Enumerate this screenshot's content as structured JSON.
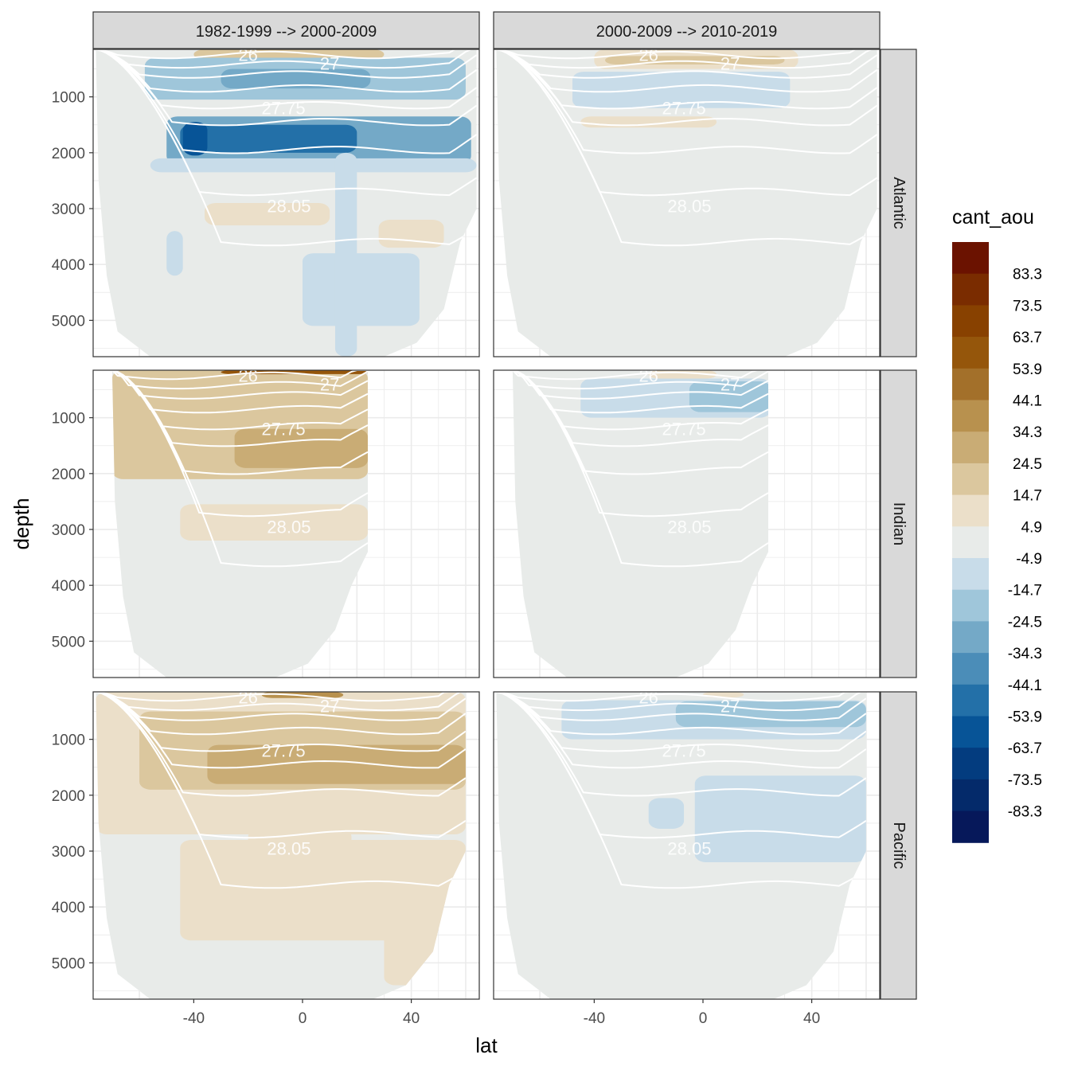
{
  "chart_data": {
    "type": "heatmap",
    "description_kind": "faceted filled-contour ocean sections",
    "xlabel": "lat",
    "ylabel": "depth",
    "legend_title": "cant_aou",
    "legend_placement": "right",
    "xlim": [
      -77,
      65
    ],
    "ylim": [
      5650,
      150
    ],
    "y_reversed": true,
    "x_ticks": [
      -40,
      0,
      40
    ],
    "y_ticks": [
      1000,
      2000,
      3000,
      4000,
      5000
    ],
    "grid": true,
    "column_strips": [
      "1982-1999 --> 2000-2009",
      "2000-2009 --> 2010-2019"
    ],
    "row_strips": [
      "Atlantic",
      "Indian",
      "Pacific"
    ],
    "legend_bins": [
      {
        "label": "83.3",
        "color": "#6b1200"
      },
      {
        "label": "73.5",
        "color": "#7a2c00"
      },
      {
        "label": "63.7",
        "color": "#884100"
      },
      {
        "label": "53.9",
        "color": "#95560b"
      },
      {
        "label": "44.1",
        "color": "#a3702a"
      },
      {
        "label": "34.3",
        "color": "#b8914e"
      },
      {
        "label": "24.5",
        "color": "#c9ac75"
      },
      {
        "label": "14.7",
        "color": "#dbc79e"
      },
      {
        "label": "4.9",
        "color": "#ebdfc9"
      },
      {
        "label": "-4.9",
        "color": "#e8ebe9"
      },
      {
        "label": "-14.7",
        "color": "#c8dce9"
      },
      {
        "label": "-24.5",
        "color": "#9fc6da"
      },
      {
        "label": "-34.3",
        "color": "#74a9c7"
      },
      {
        "label": "-44.1",
        "color": "#4b8db8"
      },
      {
        "label": "-53.9",
        "color": "#2370a8"
      },
      {
        "label": "-63.7",
        "color": "#075497"
      },
      {
        "label": "-73.5",
        "color": "#033c7f"
      },
      {
        "label": "-83.3",
        "color": "#042a6a"
      },
      {
        "label": "",
        "color": "#06185a"
      }
    ],
    "isopycnal_labels": [
      "26",
      "27",
      "27.75",
      "28.05"
    ],
    "panels": [
      {
        "basin": "Atlantic",
        "period": "1982-1999 --> 2000-2009",
        "lat_range": [
          -76,
          64
        ],
        "bands": [
          {
            "color": "#dbc79e",
            "lat": [
              -40,
              30
            ],
            "depth": [
              150,
              330
            ]
          },
          {
            "color": "#9fc6da",
            "lat": [
              -58,
              60
            ],
            "depth": [
              300,
              1050
            ]
          },
          {
            "color": "#74a9c7",
            "lat": [
              -30,
              25
            ],
            "depth": [
              500,
              850
            ]
          },
          {
            "color": "#74a9c7",
            "lat": [
              -50,
              62
            ],
            "depth": [
              1350,
              2200
            ]
          },
          {
            "color": "#2370a8",
            "lat": [
              -45,
              20
            ],
            "depth": [
              1500,
              2000
            ]
          },
          {
            "color": "#075497",
            "lat": [
              -44,
              -35
            ],
            "depth": [
              1450,
              2050
            ]
          },
          {
            "color": "#c8dce9",
            "lat": [
              -56,
              64
            ],
            "depth": [
              2100,
              2350
            ]
          },
          {
            "color": "#ebdfc9",
            "lat": [
              -36,
              10
            ],
            "depth": [
              2900,
              3300
            ]
          },
          {
            "color": "#ebdfc9",
            "lat": [
              28,
              52
            ],
            "depth": [
              3200,
              3700
            ]
          },
          {
            "color": "#c8dce9",
            "lat": [
              0,
              43
            ],
            "depth": [
              3800,
              5100
            ]
          },
          {
            "color": "#c8dce9",
            "lat": [
              12,
              20
            ],
            "depth": [
              2000,
              5650
            ]
          },
          {
            "color": "#c8dce9",
            "lat": [
              -50,
              -44
            ],
            "depth": [
              3400,
              4200
            ]
          }
        ]
      },
      {
        "basin": "Atlantic",
        "period": "2000-2009 --> 2010-2019",
        "lat_range": [
          -76,
          64
        ],
        "bands": [
          {
            "color": "#ebdfc9",
            "lat": [
              -40,
              35
            ],
            "depth": [
              150,
              500
            ]
          },
          {
            "color": "#dbc79e",
            "lat": [
              -36,
              30
            ],
            "depth": [
              270,
              420
            ]
          },
          {
            "color": "#c8dce9",
            "lat": [
              -48,
              32
            ],
            "depth": [
              550,
              1200
            ]
          },
          {
            "color": "#ebdfc9",
            "lat": [
              -45,
              5
            ],
            "depth": [
              1350,
              1550
            ]
          }
        ]
      },
      {
        "basin": "Indian",
        "period": "1982-1999 --> 2000-2009",
        "lat_range": [
          -70,
          24
        ],
        "bands": [
          {
            "color": "#dbc79e",
            "lat": [
              -70,
              24
            ],
            "depth": [
              150,
              2100
            ]
          },
          {
            "color": "#c9ac75",
            "lat": [
              -25,
              24
            ],
            "depth": [
              1200,
              1900
            ]
          },
          {
            "color": "#ebdfc9",
            "lat": [
              -45,
              24
            ],
            "depth": [
              2550,
              3200
            ]
          },
          {
            "color": "#95560b",
            "lat": [
              -30,
              24
            ],
            "depth": [
              150,
              220
            ]
          }
        ]
      },
      {
        "basin": "Indian",
        "period": "2000-2009 --> 2010-2019",
        "lat_range": [
          -70,
          24
        ],
        "bands": [
          {
            "color": "#c8dce9",
            "lat": [
              -45,
              25
            ],
            "depth": [
              300,
              1000
            ]
          },
          {
            "color": "#9fc6da",
            "lat": [
              -5,
              25
            ],
            "depth": [
              350,
              900
            ]
          },
          {
            "color": "#ebdfc9",
            "lat": [
              -20,
              5
            ],
            "depth": [
              150,
              300
            ]
          }
        ]
      },
      {
        "basin": "Pacific",
        "period": "1982-1999 --> 2000-2009",
        "lat_range": [
          -76,
          60
        ],
        "bands": [
          {
            "color": "#ebdfc9",
            "lat": [
              -76,
              60
            ],
            "depth": [
              150,
              2700
            ]
          },
          {
            "color": "#dbc79e",
            "lat": [
              -60,
              60
            ],
            "depth": [
              500,
              1900
            ]
          },
          {
            "color": "#c9ac75",
            "lat": [
              -35,
              60
            ],
            "depth": [
              1100,
              1800
            ]
          },
          {
            "color": "#ebdfc9",
            "lat": [
              -20,
              18
            ],
            "depth": [
              2600,
              3300
            ]
          },
          {
            "color": "#ebdfc9",
            "lat": [
              -45,
              60
            ],
            "depth": [
              2800,
              4600
            ]
          },
          {
            "color": "#ebdfc9",
            "lat": [
              30,
              58
            ],
            "depth": [
              3900,
              5400
            ]
          },
          {
            "color": "#b8914e",
            "lat": [
              -15,
              15
            ],
            "depth": [
              150,
              260
            ]
          }
        ]
      },
      {
        "basin": "Pacific",
        "period": "2000-2009 --> 2010-2019",
        "lat_range": [
          -76,
          60
        ],
        "bands": [
          {
            "color": "#c8dce9",
            "lat": [
              -52,
              60
            ],
            "depth": [
              300,
              1000
            ]
          },
          {
            "color": "#9fc6da",
            "lat": [
              -10,
              60
            ],
            "depth": [
              320,
              780
            ]
          },
          {
            "color": "#c8dce9",
            "lat": [
              -20,
              -7
            ],
            "depth": [
              2050,
              2600
            ]
          },
          {
            "color": "#c8dce9",
            "lat": [
              -3,
              60
            ],
            "depth": [
              1650,
              3200
            ]
          },
          {
            "color": "#ebdfc9",
            "lat": [
              0,
              15
            ],
            "depth": [
              150,
              250
            ]
          }
        ]
      }
    ]
  }
}
